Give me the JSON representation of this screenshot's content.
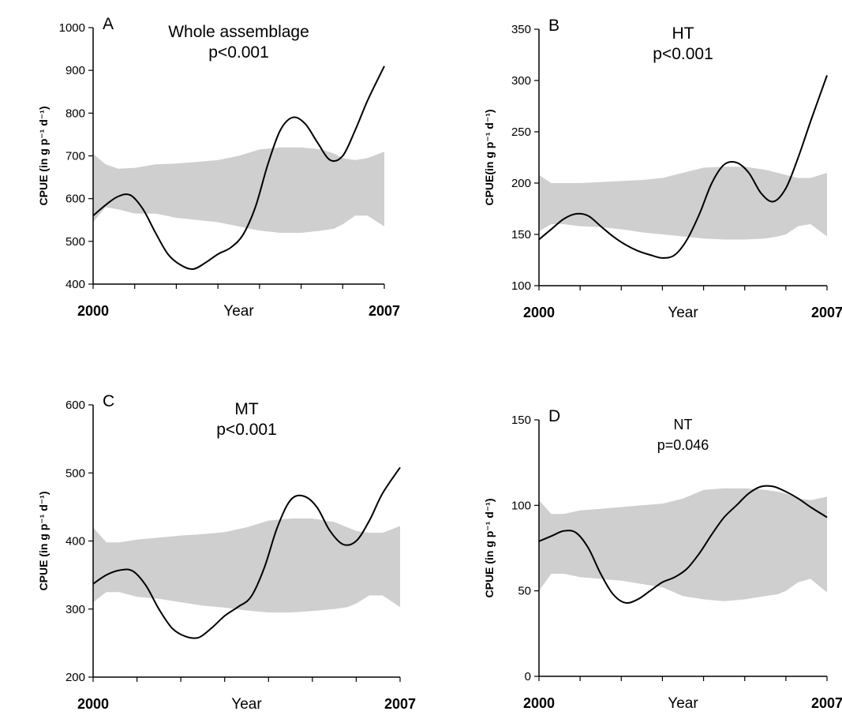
{
  "figure": {
    "shared_xlabel": "Year"
  },
  "chart_data": [
    {
      "panel_letter": "A",
      "type": "line",
      "title": "Whole assemblage",
      "subtitle": "p<0.001",
      "xlabel": "Year",
      "ylabel": "CPUE (in g p⁻¹ d⁻¹)",
      "xlim": [
        2000,
        2007
      ],
      "ylim": [
        400,
        1000
      ],
      "xtick_labels": [
        "2000",
        "2007"
      ],
      "yticks": [
        400,
        500,
        600,
        700,
        800,
        900,
        1000
      ],
      "grid": false,
      "band_color": "#cfcfcf",
      "line_color": "#000000",
      "series": [
        {
          "type": "line",
          "x": [
            2000.0,
            2000.3,
            2000.6,
            2000.9,
            2001.2,
            2001.5,
            2001.8,
            2002.1,
            2002.4,
            2002.7,
            2003.0,
            2003.3,
            2003.6,
            2003.9,
            2004.2,
            2004.5,
            2004.8,
            2005.1,
            2005.4,
            2005.7,
            2006.0,
            2006.3,
            2006.6,
            2007.0
          ],
          "y": [
            560,
            585,
            605,
            608,
            575,
            520,
            470,
            445,
            435,
            450,
            470,
            485,
            515,
            580,
            680,
            760,
            790,
            775,
            730,
            690,
            700,
            760,
            830,
            910
          ]
        },
        {
          "type": "band",
          "x": [
            2000.0,
            2000.3,
            2000.6,
            2001.0,
            2001.5,
            2002.0,
            2002.5,
            2003.0,
            2003.5,
            2004.0,
            2004.5,
            2005.0,
            2005.5,
            2005.8,
            2006.0,
            2006.3,
            2006.6,
            2007.0
          ],
          "upper": [
            705,
            680,
            670,
            672,
            680,
            682,
            686,
            690,
            700,
            715,
            720,
            720,
            715,
            705,
            695,
            690,
            695,
            710
          ],
          "lower": [
            545,
            580,
            575,
            565,
            565,
            555,
            550,
            545,
            535,
            525,
            520,
            520,
            525,
            530,
            540,
            560,
            560,
            535
          ]
        }
      ]
    },
    {
      "panel_letter": "B",
      "type": "line",
      "title": "HT",
      "subtitle": "p<0.001",
      "xlabel": "Year",
      "ylabel": "CPUE(in g p⁻¹ d⁻¹)",
      "xlim": [
        2000,
        2007
      ],
      "ylim": [
        100,
        350
      ],
      "xtick_labels": [
        "2000",
        "2007"
      ],
      "yticks": [
        100,
        150,
        200,
        250,
        300,
        350
      ],
      "grid": false,
      "band_color": "#cfcfcf",
      "line_color": "#000000",
      "series": [
        {
          "type": "line",
          "x": [
            2000.0,
            2000.3,
            2000.6,
            2000.9,
            2001.2,
            2001.5,
            2001.8,
            2002.1,
            2002.4,
            2002.7,
            2003.0,
            2003.3,
            2003.6,
            2003.9,
            2004.2,
            2004.5,
            2004.8,
            2005.1,
            2005.4,
            2005.7,
            2006.0,
            2006.3,
            2006.6,
            2007.0
          ],
          "y": [
            145,
            155,
            165,
            170,
            168,
            158,
            148,
            140,
            134,
            130,
            127,
            130,
            145,
            170,
            200,
            218,
            220,
            210,
            190,
            182,
            195,
            225,
            260,
            305
          ]
        },
        {
          "type": "band",
          "x": [
            2000.0,
            2000.3,
            2000.6,
            2001.0,
            2001.5,
            2002.0,
            2002.5,
            2003.0,
            2003.5,
            2004.0,
            2004.5,
            2005.0,
            2005.5,
            2005.8,
            2006.0,
            2006.3,
            2006.6,
            2007.0
          ],
          "upper": [
            208,
            200,
            200,
            200,
            201,
            202,
            203,
            205,
            210,
            215,
            216,
            216,
            213,
            210,
            208,
            205,
            205,
            210
          ],
          "lower": [
            153,
            160,
            160,
            158,
            157,
            155,
            152,
            150,
            148,
            146,
            145,
            145,
            146,
            148,
            150,
            158,
            160,
            148
          ]
        }
      ]
    },
    {
      "panel_letter": "C",
      "type": "line",
      "title": "MT",
      "subtitle": "p<0.001",
      "xlabel": "Year",
      "ylabel": "CPUE (in g p⁻¹ d⁻¹)",
      "xlim": [
        2000,
        2007
      ],
      "ylim": [
        200,
        600
      ],
      "xtick_labels": [
        "2000",
        "2007"
      ],
      "yticks": [
        200,
        300,
        400,
        500,
        600
      ],
      "grid": false,
      "band_color": "#cfcfcf",
      "line_color": "#000000",
      "series": [
        {
          "type": "line",
          "x": [
            2000.0,
            2000.3,
            2000.6,
            2000.9,
            2001.2,
            2001.5,
            2001.8,
            2002.1,
            2002.4,
            2002.7,
            2003.0,
            2003.3,
            2003.6,
            2003.9,
            2004.2,
            2004.5,
            2004.8,
            2005.1,
            2005.4,
            2005.7,
            2006.0,
            2006.3,
            2006.6,
            2007.0
          ],
          "y": [
            337,
            350,
            357,
            356,
            335,
            300,
            272,
            260,
            258,
            272,
            290,
            303,
            318,
            360,
            420,
            460,
            466,
            450,
            415,
            395,
            400,
            430,
            470,
            508
          ]
        },
        {
          "type": "band",
          "x": [
            2000.0,
            2000.3,
            2000.6,
            2001.0,
            2001.5,
            2002.0,
            2002.5,
            2003.0,
            2003.5,
            2004.0,
            2004.5,
            2005.0,
            2005.5,
            2005.8,
            2006.0,
            2006.3,
            2006.6,
            2007.0
          ],
          "upper": [
            420,
            398,
            398,
            402,
            405,
            408,
            410,
            413,
            420,
            430,
            433,
            433,
            428,
            420,
            415,
            412,
            412,
            422
          ],
          "lower": [
            310,
            325,
            325,
            318,
            315,
            310,
            305,
            302,
            298,
            295,
            295,
            297,
            300,
            303,
            308,
            320,
            320,
            303
          ]
        }
      ]
    },
    {
      "panel_letter": "D",
      "type": "line",
      "title": "NT",
      "subtitle": "p=0.046",
      "xlabel": "Year",
      "ylabel": "CPUE (in g p⁻¹ d⁻¹)",
      "xlim": [
        2000,
        2007
      ],
      "ylim": [
        0,
        150
      ],
      "xtick_labels": [
        "2000",
        "2007"
      ],
      "yticks": [
        0,
        50,
        100,
        150
      ],
      "grid": false,
      "band_color": "#cfcfcf",
      "line_color": "#000000",
      "series": [
        {
          "type": "line",
          "x": [
            2000.0,
            2000.3,
            2000.6,
            2000.9,
            2001.2,
            2001.5,
            2001.8,
            2002.1,
            2002.4,
            2002.7,
            2003.0,
            2003.3,
            2003.6,
            2003.9,
            2004.2,
            2004.5,
            2004.8,
            2005.1,
            2005.4,
            2005.7,
            2006.0,
            2006.3,
            2006.6,
            2007.0
          ],
          "y": [
            79,
            82,
            85,
            84,
            75,
            60,
            48,
            43,
            45,
            50,
            55,
            58,
            63,
            72,
            83,
            93,
            100,
            107,
            111,
            111,
            108,
            104,
            99,
            93
          ]
        },
        {
          "type": "band",
          "x": [
            2000.0,
            2000.3,
            2000.6,
            2001.0,
            2001.5,
            2002.0,
            2002.5,
            2003.0,
            2003.5,
            2004.0,
            2004.5,
            2005.0,
            2005.5,
            2005.8,
            2006.0,
            2006.3,
            2006.6,
            2007.0
          ],
          "upper": [
            103,
            95,
            95,
            97,
            98,
            99,
            100,
            101,
            104,
            109,
            110,
            110,
            109,
            108,
            107,
            104,
            103,
            105
          ],
          "lower": [
            50,
            60,
            60,
            58,
            57,
            56,
            54,
            52,
            47,
            45,
            44,
            45,
            47,
            48,
            50,
            55,
            57,
            49
          ]
        }
      ]
    }
  ]
}
